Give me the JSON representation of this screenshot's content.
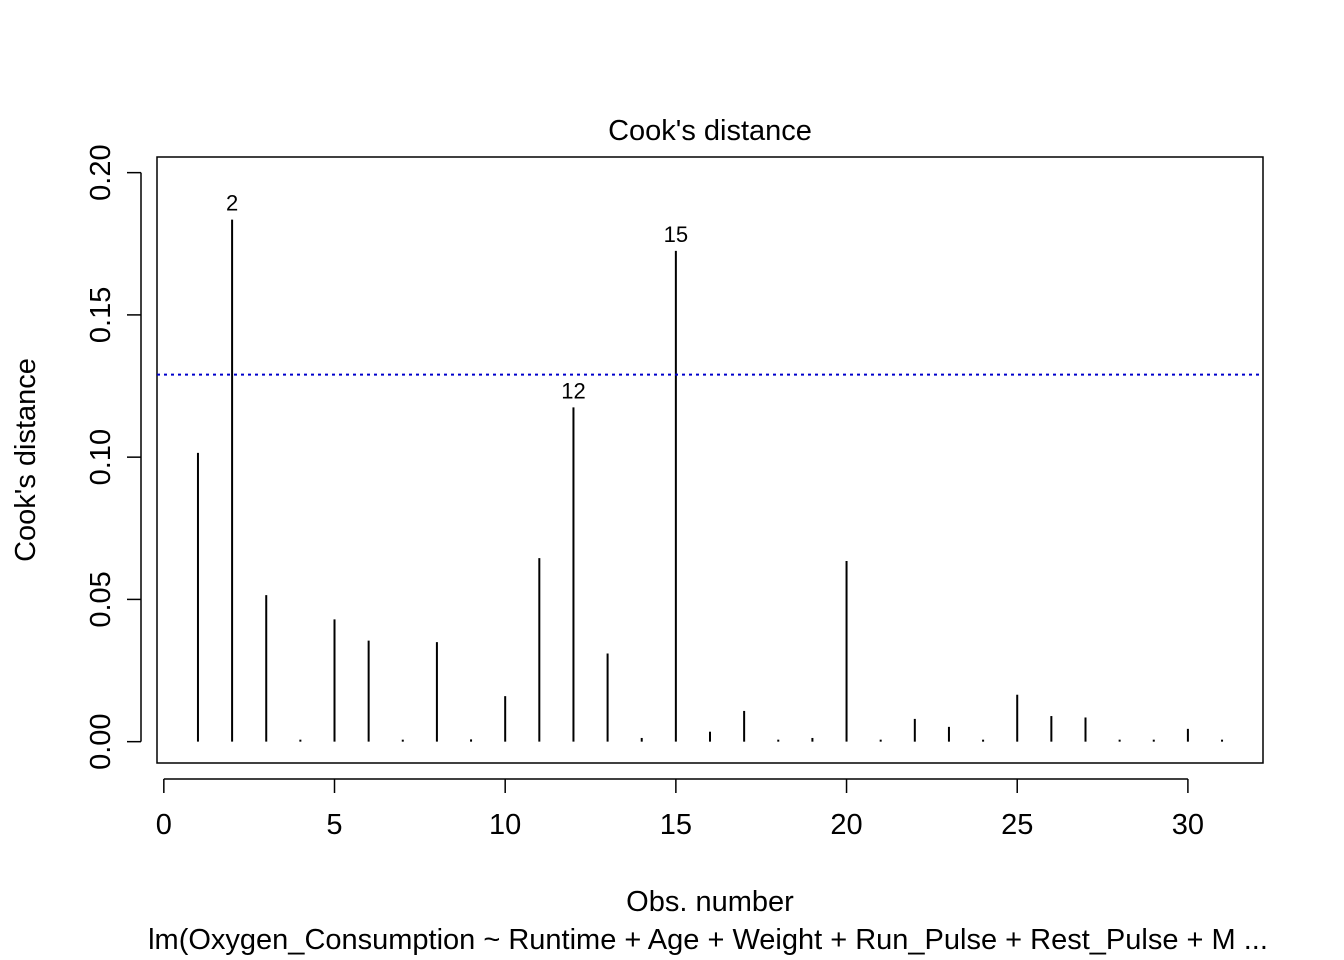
{
  "chart_data": {
    "type": "bar",
    "title": "Cook's distance",
    "xlabel": "Obs. number",
    "ylabel": "Cook's distance",
    "subtitle": "lm(Oxygen_Consumption ~ Runtime + Age + Weight + Run_Pulse + Rest_Pulse + M ...",
    "xlim": [
      -0.2,
      32.2
    ],
    "ylim": [
      -0.0075,
      0.2055
    ],
    "xticks": [
      0,
      5,
      10,
      15,
      20,
      25,
      30
    ],
    "xtick_labels": [
      "0",
      "5",
      "10",
      "15",
      "20",
      "25",
      "30"
    ],
    "yticks": [
      0.0,
      0.05,
      0.1,
      0.15,
      0.2
    ],
    "ytick_labels": [
      "0.00",
      "0.05",
      "0.10",
      "0.15",
      "0.20"
    ],
    "x": [
      1,
      2,
      3,
      4,
      5,
      6,
      7,
      8,
      9,
      10,
      11,
      12,
      13,
      14,
      15,
      16,
      17,
      18,
      19,
      20,
      21,
      22,
      23,
      24,
      25,
      26,
      27,
      28,
      29,
      30,
      31
    ],
    "values": [
      0.1015,
      0.1835,
      0.0515,
      0.0003,
      0.043,
      0.0355,
      0.0007,
      0.035,
      0.0008,
      0.016,
      0.0645,
      0.1175,
      0.031,
      0.0013,
      0.1725,
      0.0035,
      0.0108,
      0.0003,
      0.0013,
      0.0635,
      0.0006,
      0.008,
      0.0052,
      0.0003,
      0.0165,
      0.009,
      0.0085,
      0.0003,
      0.0004,
      0.0045,
      0.0002
    ],
    "point_labels": [
      {
        "x": 2,
        "text": "2"
      },
      {
        "x": 12,
        "text": "12"
      },
      {
        "x": 15,
        "text": "15"
      }
    ],
    "reference_line": {
      "y": 0.129,
      "style": "dotted",
      "color": "#0000cc"
    },
    "colors": {
      "bars": "#000000",
      "reference_line": "#0000cc"
    }
  }
}
